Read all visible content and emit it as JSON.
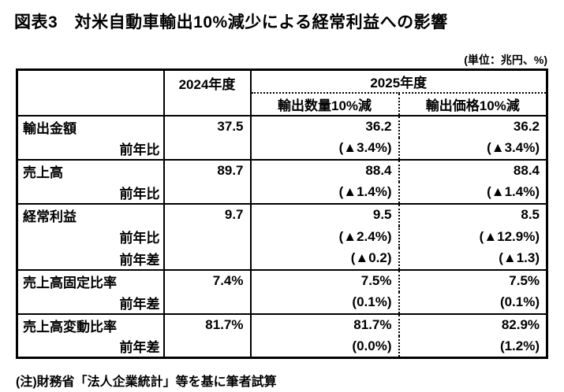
{
  "page": {
    "title": "図表3　対米自動車輸出10%減少による経常利益への影響",
    "unit_note": "(単位：兆円、%)",
    "footnote": "(注)財務省「法人企業統計」等を基に筆者試算"
  },
  "table": {
    "columns": {
      "label": "",
      "fy2024": "2024年度",
      "fy2025": "2025年度",
      "sub_volume": "輸出数量10%減",
      "sub_price": "輸出価格10%減"
    },
    "rows": [
      {
        "label": "輸出金額",
        "cells": [
          "37.5",
          "36.2",
          "36.2"
        ]
      },
      {
        "label": "前年比",
        "cells": [
          "",
          "(▲3.4%)",
          "(▲3.4%)"
        ]
      },
      {
        "label": "売上高",
        "cells": [
          "89.7",
          "88.4",
          "88.4"
        ]
      },
      {
        "label": "前年比",
        "cells": [
          "",
          "(▲1.4%)",
          "(▲1.4%)"
        ]
      },
      {
        "label": "経常利益",
        "cells": [
          "9.7",
          "9.5",
          "8.5"
        ]
      },
      {
        "label": "前年比",
        "cells": [
          "",
          "(▲2.4%)",
          "(▲12.9%)"
        ]
      },
      {
        "label": "前年差",
        "cells": [
          "",
          "(▲0.2)",
          "(▲1.3)"
        ]
      },
      {
        "label": "売上高固定比率",
        "cells": [
          "7.4%",
          "7.5%",
          "7.5%"
        ]
      },
      {
        "label": "前年差",
        "cells": [
          "",
          "(0.1%)",
          "(0.1%)"
        ]
      },
      {
        "label": "売上高変動比率",
        "cells": [
          "81.7%",
          "81.7%",
          "82.9%"
        ]
      },
      {
        "label": "前年差",
        "cells": [
          "",
          "(0.0%)",
          "(1.2%)"
        ]
      }
    ]
  }
}
